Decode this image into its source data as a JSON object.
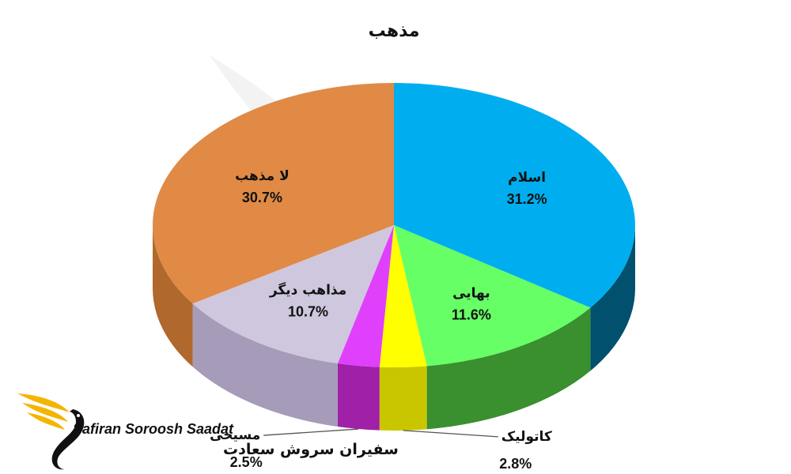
{
  "chart_data": {
    "type": "pie",
    "title": "مذهب",
    "slices": [
      {
        "label": "اسلام",
        "value": 31.2,
        "value_label": "31.2%",
        "color": "#00AEEF",
        "side_color": "#00506E"
      },
      {
        "label": "بهایی",
        "value": 11.6,
        "value_label": "11.6%",
        "color": "#66FF66",
        "side_color": "#3A8F2E"
      },
      {
        "label": "کاتولیک",
        "value": 2.8,
        "value_label": "2.8%",
        "color": "#FFFF00",
        "side_color": "#C9C600"
      },
      {
        "label": "مسیحی",
        "value": 2.5,
        "value_label": "2.5%",
        "color": "#E040FB",
        "side_color": "#A020A8"
      },
      {
        "label": "مذاهب دیگر",
        "value": 10.7,
        "value_label": "10.7%",
        "color": "#CFC7DE",
        "side_color": "#A69BB8"
      },
      {
        "label": "لا مذهب",
        "value": 30.7,
        "value_label": "30.7%",
        "color": "#E08A45",
        "side_color": "#B0682D"
      }
    ]
  },
  "logo": {
    "text_en": "Safiran Soroosh Saadat",
    "text_fa": "سفیران سروش سعادت",
    "bird_color": "#F5B400"
  }
}
